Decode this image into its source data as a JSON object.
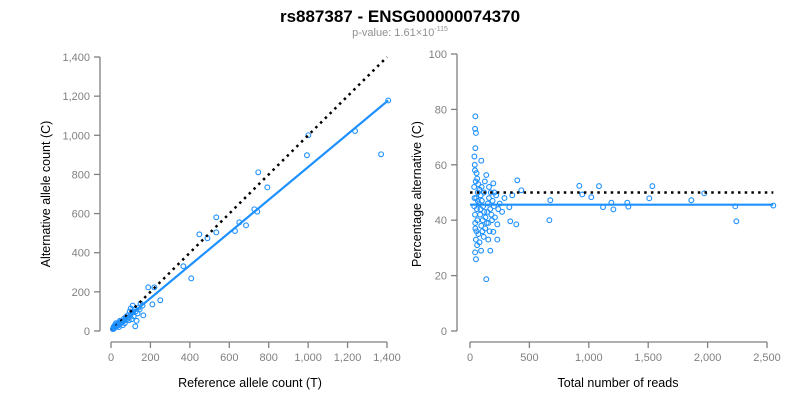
{
  "title": "rs887387 - ENSG00000074370",
  "subtitle": {
    "prefix": "p-value: 1.61×10",
    "exponent": "-115"
  },
  "colors": {
    "points": "#1E90FF",
    "fit": "#1E90FF",
    "reference": "#000000",
    "axis": "#808080"
  },
  "chart_data": [
    {
      "type": "scatter",
      "xlabel": "Reference allele count (T)",
      "ylabel": "Alternative allele count (C)",
      "xlim": [
        0,
        1400
      ],
      "ylim": [
        0,
        1400
      ],
      "xticks": [
        0,
        200,
        400,
        600,
        800,
        1000,
        1200,
        1400
      ],
      "xtick_labels": [
        "0",
        "200",
        "400",
        "600",
        "800",
        "1,000",
        "1,200",
        "1,400"
      ],
      "yticks": [
        0,
        200,
        400,
        600,
        800,
        1000,
        1200,
        1400
      ],
      "ytick_labels": [
        "0",
        "200",
        "400",
        "600",
        "800",
        "1,000",
        "1,200",
        "1,400"
      ],
      "grid": false,
      "fit_line": {
        "x": [
          0,
          1406
        ],
        "y": [
          0,
          1178
        ]
      },
      "reference_line": {
        "x": [
          0,
          1400
        ],
        "y": [
          0,
          1400
        ],
        "style": "dotted"
      },
      "points": [
        [
          1406,
          1178
        ],
        [
          1370,
          903
        ],
        [
          1238,
          1022
        ],
        [
          1001,
          1000
        ],
        [
          994,
          898
        ],
        [
          747,
          811
        ],
        [
          793,
          734
        ],
        [
          727,
          622
        ],
        [
          742,
          610
        ],
        [
          685,
          540
        ],
        [
          629,
          511
        ],
        [
          651,
          555
        ],
        [
          534,
          581
        ],
        [
          534,
          504
        ],
        [
          489,
          474
        ],
        [
          448,
          494
        ],
        [
          367,
          331
        ],
        [
          407,
          269
        ],
        [
          189,
          223
        ],
        [
          220,
          223
        ],
        [
          250,
          157
        ],
        [
          210,
          136
        ],
        [
          164,
          80
        ],
        [
          123,
          24
        ],
        [
          130,
          52
        ],
        [
          150,
          140
        ],
        [
          140,
          120
        ],
        [
          120,
          110
        ],
        [
          110,
          95
        ],
        [
          100,
          85
        ],
        [
          95,
          100
        ],
        [
          90,
          70
        ],
        [
          85,
          80
        ],
        [
          80,
          60
        ],
        [
          75,
          72
        ],
        [
          70,
          55
        ],
        [
          65,
          62
        ],
        [
          60,
          50
        ],
        [
          55,
          45
        ],
        [
          50,
          48
        ],
        [
          48,
          38
        ],
        [
          45,
          52
        ],
        [
          40,
          35
        ],
        [
          38,
          30
        ],
        [
          35,
          40
        ],
        [
          32,
          28
        ],
        [
          30,
          25
        ],
        [
          28,
          32
        ],
        [
          25,
          22
        ],
        [
          22,
          26
        ],
        [
          20,
          18
        ],
        [
          18,
          20
        ],
        [
          15,
          14
        ],
        [
          14,
          22
        ],
        [
          12,
          10
        ],
        [
          10,
          12
        ],
        [
          105,
          60
        ],
        [
          115,
          75
        ],
        [
          125,
          100
        ],
        [
          135,
          90
        ],
        [
          145,
          110
        ],
        [
          160,
          130
        ],
        [
          60,
          30
        ],
        [
          70,
          40
        ],
        [
          90,
          55
        ],
        [
          40,
          20
        ],
        [
          20,
          30
        ],
        [
          25,
          40
        ],
        [
          110,
          130
        ],
        [
          100,
          115
        ]
      ]
    },
    {
      "type": "scatter",
      "xlabel": "Total number of reads",
      "ylabel": "Percentage alternative (C)",
      "xlim": [
        0,
        2600
      ],
      "ylim": [
        0,
        100
      ],
      "xticks": [
        0,
        500,
        1000,
        1500,
        2000,
        2500
      ],
      "xtick_labels": [
        "0",
        "500",
        "1,000",
        "1,500",
        "2,000",
        "2,500"
      ],
      "yticks": [
        0,
        20,
        40,
        60,
        80,
        100
      ],
      "ytick_labels": [
        "0",
        "20",
        "40",
        "60",
        "80",
        "100"
      ],
      "grid": false,
      "fit_line": {
        "x": [
          0,
          2553
        ],
        "y": [
          45.6,
          45.6
        ]
      },
      "reference_line": {
        "x": [
          0,
          2553
        ],
        "y": [
          50,
          50
        ],
        "style": "dotted"
      },
      "points": [
        [
          2553,
          45.3
        ],
        [
          2242,
          39.6
        ],
        [
          2233,
          45.0
        ],
        [
          1972,
          49.7
        ],
        [
          1863,
          47.2
        ],
        [
          1535,
          52.3
        ],
        [
          1509,
          47.9
        ],
        [
          1333,
          44.9
        ],
        [
          1324,
          46.3
        ],
        [
          1207,
          43.9
        ],
        [
          1190,
          46.3
        ],
        [
          1120,
          44.7
        ],
        [
          1086,
          52.3
        ],
        [
          1021,
          48.3
        ],
        [
          945,
          49.3
        ],
        [
          920,
          52.4
        ],
        [
          676,
          47.2
        ],
        [
          668,
          40.0
        ],
        [
          432,
          50.8
        ],
        [
          398,
          54.4
        ],
        [
          390,
          38.5
        ],
        [
          339,
          39.6
        ],
        [
          356,
          49.0
        ],
        [
          331,
          44.7
        ],
        [
          45,
          77.5
        ],
        [
          43,
          73
        ],
        [
          50,
          71.5
        ],
        [
          45,
          66
        ],
        [
          37,
          63
        ],
        [
          95,
          61.5
        ],
        [
          137,
          18.7
        ],
        [
          50,
          25.9
        ],
        [
          43,
          28.4
        ],
        [
          93,
          29
        ],
        [
          171,
          29
        ],
        [
          154,
          33
        ],
        [
          230,
          33
        ],
        [
          196,
          35.8
        ],
        [
          230,
          38.5
        ],
        [
          137,
          56.3
        ],
        [
          196,
          53.3
        ],
        [
          238,
          44
        ],
        [
          40,
          60
        ],
        [
          42,
          58
        ],
        [
          55,
          57
        ],
        [
          60,
          55
        ],
        [
          48,
          54
        ],
        [
          70,
          53
        ],
        [
          35,
          52
        ],
        [
          80,
          51
        ],
        [
          65,
          50
        ],
        [
          90,
          49
        ],
        [
          52,
          48
        ],
        [
          100,
          47
        ],
        [
          75,
          46
        ],
        [
          110,
          45
        ],
        [
          58,
          44
        ],
        [
          120,
          43
        ],
        [
          85,
          42
        ],
        [
          130,
          41
        ],
        [
          62,
          40
        ],
        [
          140,
          39
        ],
        [
          95,
          38
        ],
        [
          45,
          37
        ],
        [
          105,
          36
        ],
        [
          70,
          35
        ],
        [
          115,
          34
        ],
        [
          50,
          33
        ],
        [
          80,
          32
        ],
        [
          60,
          31
        ],
        [
          150,
          46
        ],
        [
          160,
          48
        ],
        [
          170,
          44
        ],
        [
          180,
          42
        ],
        [
          190,
          47
        ],
        [
          200,
          45
        ],
        [
          210,
          41
        ],
        [
          220,
          49
        ],
        [
          250,
          46
        ],
        [
          270,
          43
        ],
        [
          290,
          48
        ],
        [
          160,
          52
        ],
        [
          175,
          50
        ],
        [
          125,
          54
        ],
        [
          38,
          48
        ],
        [
          42,
          42
        ],
        [
          36,
          45
        ],
        [
          44,
          39
        ],
        [
          55,
          36
        ],
        [
          65,
          47
        ],
        [
          88,
          44
        ],
        [
          98,
          52
        ],
        [
          108,
          40
        ],
        [
          118,
          50
        ],
        [
          128,
          37
        ],
        [
          145,
          43
        ],
        [
          155,
          39
        ],
        [
          165,
          36
        ],
        [
          185,
          40
        ],
        [
          205,
          50
        ]
      ]
    }
  ]
}
